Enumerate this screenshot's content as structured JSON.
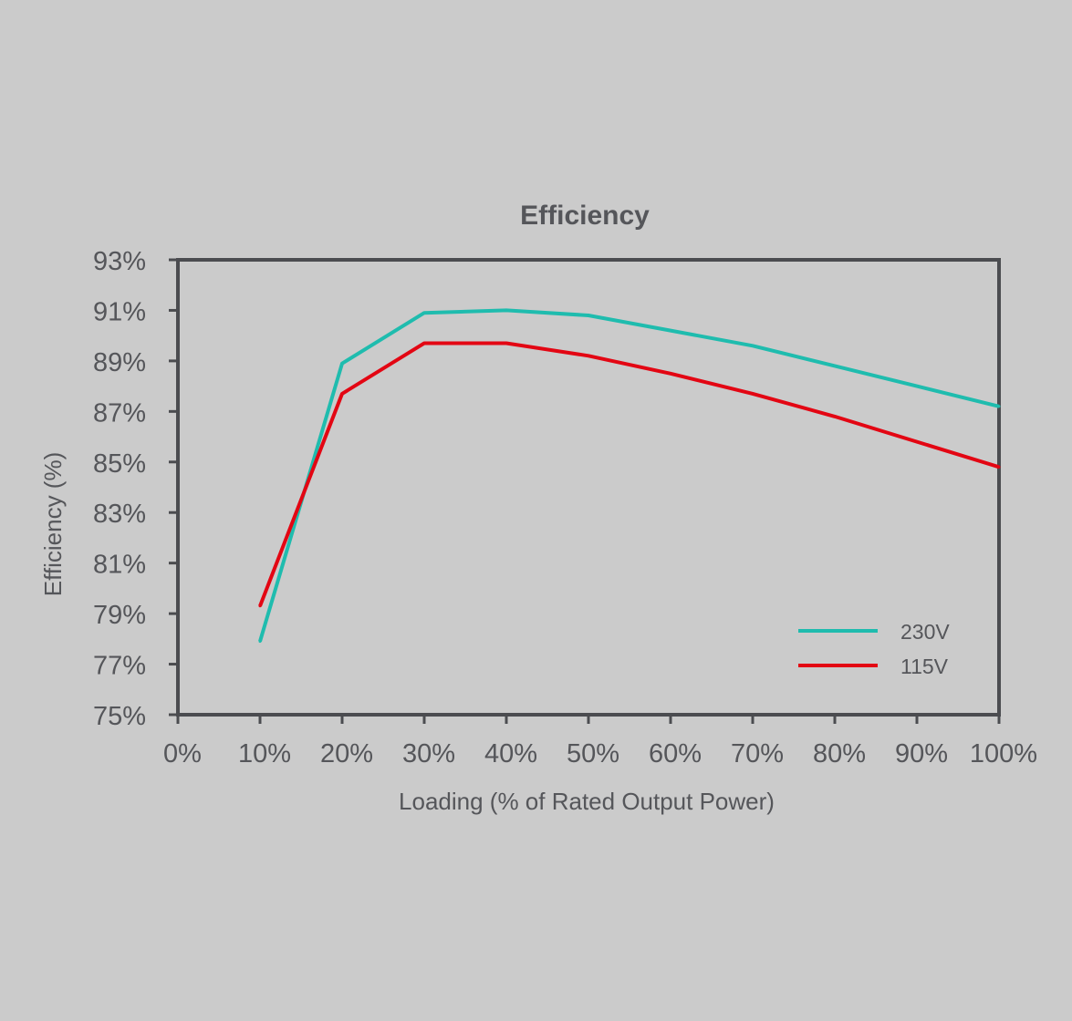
{
  "chart_data": {
    "type": "line",
    "title": "Efficiency",
    "xlabel": "Loading (% of Rated Output Power)",
    "ylabel": "Efficiency (%)",
    "xlim": [
      0,
      100
    ],
    "ylim": [
      75,
      93
    ],
    "x_ticks": [
      "0%",
      "10%",
      "20%",
      "30%",
      "40%",
      "50%",
      "60%",
      "70%",
      "80%",
      "90%",
      "100%"
    ],
    "y_ticks": [
      "75%",
      "77%",
      "79%",
      "81%",
      "83%",
      "85%",
      "87%",
      "89%",
      "91%",
      "93%"
    ],
    "x": [
      10,
      20,
      30,
      40,
      50,
      60,
      70,
      80,
      90,
      100
    ],
    "series": [
      {
        "name": "230V",
        "color": "#1fbcae",
        "values": [
          77.9,
          88.9,
          90.9,
          91.0,
          90.8,
          90.2,
          89.6,
          88.8,
          88.0,
          87.2
        ]
      },
      {
        "name": "115V",
        "color": "#e30613",
        "values": [
          79.3,
          87.7,
          89.7,
          89.7,
          89.2,
          88.5,
          87.7,
          86.8,
          85.8,
          84.8
        ]
      }
    ],
    "grid": false,
    "legend_position": "bottom-right",
    "axis_color": "#4b4c50"
  }
}
